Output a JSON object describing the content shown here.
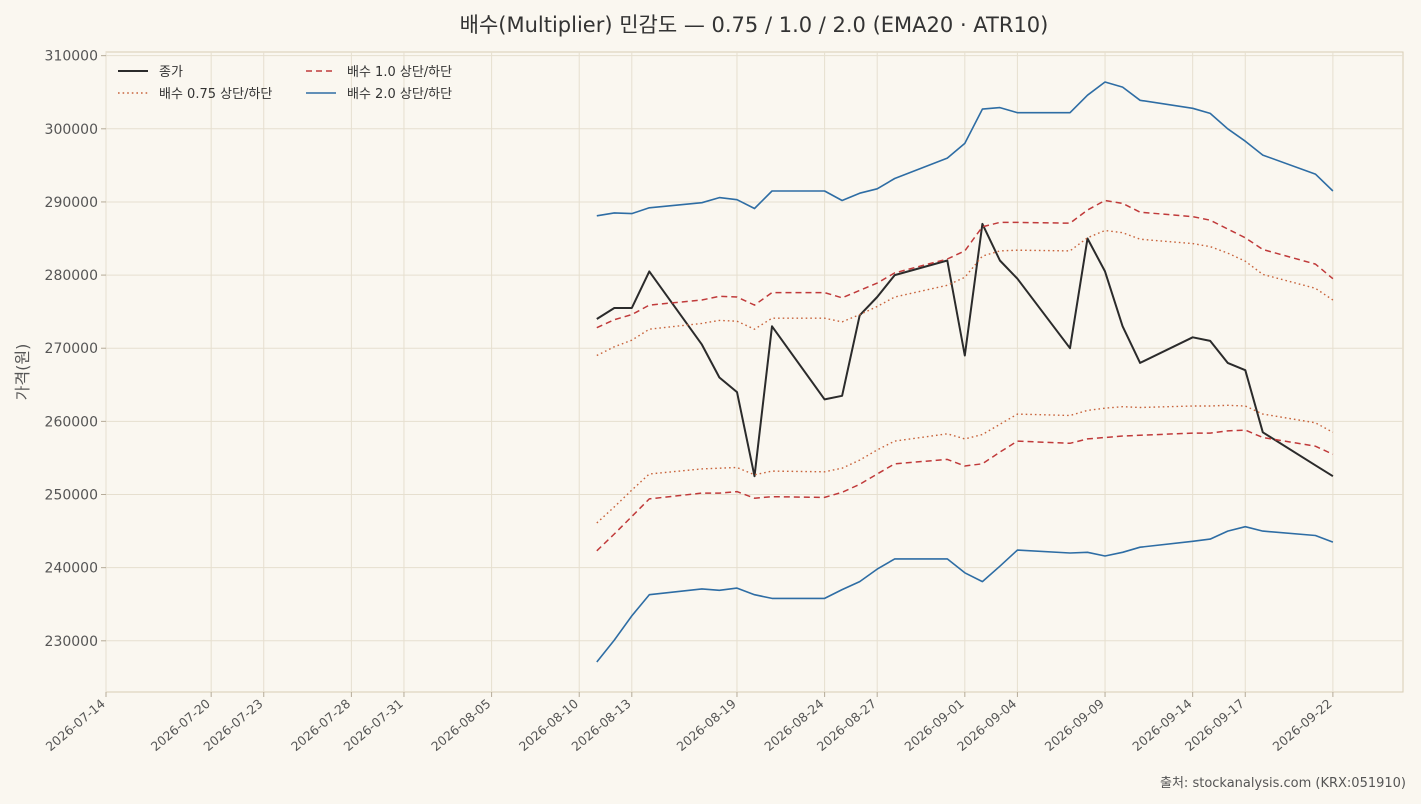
{
  "chart_data": {
    "type": "line",
    "title": "배수(Multiplier) 민감도 — 0.75 / 1.0 / 2.0 (EMA20 · ATR10)",
    "xlabel": "",
    "ylabel": "가격(원)",
    "ylim": [
      223000,
      310500
    ],
    "yticks": [
      230000,
      240000,
      250000,
      260000,
      270000,
      280000,
      290000,
      300000,
      310000
    ],
    "xlim": [
      "2026-07-14",
      "2026-09-26"
    ],
    "xticks": [
      "2026-07-14",
      "2026-07-20",
      "2026-07-23",
      "2026-07-28",
      "2026-07-31",
      "2026-08-05",
      "2026-08-10",
      "2026-08-13",
      "2026-08-19",
      "2026-08-24",
      "2026-08-27",
      "2026-09-01",
      "2026-09-04",
      "2026-09-09",
      "2026-09-14",
      "2026-09-17",
      "2026-09-22"
    ],
    "grid": true,
    "legend_position": "top-left",
    "x": [
      "2026-08-11",
      "2026-08-12",
      "2026-08-13",
      "2026-08-14",
      "2026-08-17",
      "2026-08-18",
      "2026-08-19",
      "2026-08-20",
      "2026-08-21",
      "2026-08-24",
      "2026-08-25",
      "2026-08-26",
      "2026-08-27",
      "2026-08-28",
      "2026-08-31",
      "2026-09-01",
      "2026-09-02",
      "2026-09-03",
      "2026-09-04",
      "2026-09-07",
      "2026-09-08",
      "2026-09-09",
      "2026-09-10",
      "2026-09-11",
      "2026-09-14",
      "2026-09-15",
      "2026-09-16",
      "2026-09-17",
      "2026-09-18",
      "2026-09-21",
      "2026-09-22",
      "2026-09-23"
    ],
    "series": [
      {
        "name": "종가",
        "style": "solid",
        "color": "#2b2b2b",
        "values": [
          274000,
          275500,
          275500,
          280500,
          270500,
          266000,
          264000,
          252500,
          273000,
          263000,
          263500,
          274500,
          277000,
          280000,
          282000,
          269000,
          287000,
          282000,
          279500,
          270000,
          285000,
          280500,
          273000,
          268000,
          271500,
          271000,
          268000,
          267000,
          258500,
          254000,
          252500,
          null
        ]
      },
      {
        "name": "배수 0.75 상단/하단",
        "style": "dotted",
        "color": "#c8643c",
        "band": "upper",
        "values": [
          269000,
          270200,
          271100,
          272600,
          273400,
          273800,
          273700,
          272600,
          274100,
          274100,
          273600,
          274600,
          275700,
          277000,
          278600,
          279700,
          282600,
          283300,
          283400,
          283300,
          285100,
          286100,
          285800,
          284900,
          284300,
          283900,
          283000,
          281900,
          280100,
          278200,
          276600,
          null
        ]
      },
      {
        "name": "배수 0.75 상단/하단",
        "style": "dotted",
        "color": "#c8643c",
        "band": "lower",
        "legend": false,
        "values": [
          246100,
          248300,
          250600,
          252800,
          253500,
          253600,
          253700,
          252700,
          253200,
          253100,
          253600,
          254700,
          256100,
          257300,
          258300,
          257600,
          258200,
          259600,
          261000,
          260800,
          261500,
          261800,
          262000,
          261900,
          262100,
          262100,
          262200,
          262100,
          261000,
          259800,
          258500,
          null
        ]
      },
      {
        "name": "배수 1.0 상단/하단",
        "style": "dashed",
        "color": "#c03a3a",
        "band": "upper",
        "values": [
          272800,
          273900,
          274600,
          275900,
          276600,
          277100,
          277000,
          275900,
          277600,
          277600,
          276900,
          277900,
          278900,
          280300,
          282200,
          283300,
          286600,
          287200,
          287200,
          287100,
          288900,
          290200,
          289800,
          288600,
          288000,
          287500,
          286300,
          285100,
          283500,
          281500,
          279500,
          null
        ]
      },
      {
        "name": "배수 1.0 상단/하단",
        "style": "dashed",
        "color": "#c03a3a",
        "band": "lower",
        "legend": false,
        "values": [
          242300,
          244600,
          247000,
          249400,
          250200,
          250200,
          250400,
          249500,
          249700,
          249600,
          250300,
          251400,
          252800,
          254200,
          254800,
          253900,
          254200,
          255800,
          257300,
          257000,
          257600,
          257800,
          258000,
          258100,
          258400,
          258400,
          258700,
          258800,
          257800,
          256600,
          255500,
          null
        ]
      },
      {
        "name": "배수 2.0 상단/하단",
        "style": "solid",
        "color": "#2e6da4",
        "band": "upper",
        "values": [
          288100,
          288500,
          288400,
          289200,
          289900,
          290600,
          290300,
          289100,
          291500,
          291500,
          290200,
          291200,
          291800,
          293200,
          296000,
          298000,
          302700,
          302900,
          302200,
          302200,
          304600,
          306400,
          305700,
          303900,
          302800,
          302100,
          300000,
          298300,
          296400,
          293800,
          291500,
          null
        ]
      },
      {
        "name": "배수 2.0 상단/하단",
        "style": "solid",
        "color": "#2e6da4",
        "band": "lower",
        "legend": false,
        "values": [
          227100,
          230100,
          233400,
          236300,
          237100,
          236900,
          237200,
          236300,
          235800,
          235800,
          237000,
          238100,
          239800,
          241200,
          241200,
          239300,
          238100,
          240200,
          242400,
          242000,
          242100,
          241600,
          242100,
          242800,
          243600,
          243900,
          245000,
          245600,
          245000,
          244400,
          243500,
          null
        ]
      }
    ],
    "source": "출처: stockanalysis.com (KRX:051910)"
  }
}
